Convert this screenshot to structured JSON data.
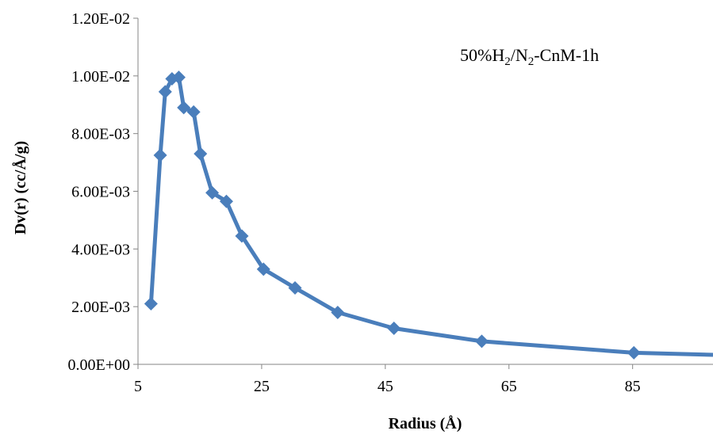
{
  "chart_data": {
    "type": "scatter",
    "annotation": {
      "prefix": "50%H",
      "sub1": "2",
      "mid": "/N",
      "sub2": "2",
      "suffix": "-CnM-1h"
    },
    "xlabel": "Radius (Å)",
    "ylabel": "Dv(r) (cc/Å/g)",
    "xlim": [
      5,
      98
    ],
    "ylim": [
      0,
      0.012
    ],
    "x_ticks": [
      "5",
      "25",
      "45",
      "65",
      "85"
    ],
    "x_tick_values": [
      5,
      25,
      45,
      65,
      85
    ],
    "y_ticks": [
      "0.00E+00",
      "2.00E-03",
      "4.00E-03",
      "6.00E-03",
      "8.00E-03",
      "1.00E-02",
      "1.20E-02"
    ],
    "y_tick_values": [
      0,
      0.002,
      0.004,
      0.006,
      0.008,
      0.01,
      0.012
    ],
    "color": "#4a7ebb",
    "series": [
      {
        "markers": "diamond",
        "points": [
          [
            7.1,
            0.0021
          ],
          [
            8.6,
            0.00725
          ],
          [
            9.4,
            0.00945
          ],
          [
            10.5,
            0.0099
          ],
          [
            11.6,
            0.00995
          ],
          [
            12.4,
            0.0089
          ],
          [
            14.0,
            0.00875
          ],
          [
            15.1,
            0.0073
          ],
          [
            17.0,
            0.00595
          ],
          [
            19.3,
            0.00565
          ],
          [
            21.8,
            0.00445
          ],
          [
            25.3,
            0.0033
          ],
          [
            30.4,
            0.00265
          ],
          [
            37.3,
            0.0018
          ],
          [
            46.4,
            0.00125
          ],
          [
            60.6,
            0.0008
          ],
          [
            85.2,
            0.0004
          ],
          [
            98.0,
            0.00033
          ]
        ]
      }
    ]
  }
}
